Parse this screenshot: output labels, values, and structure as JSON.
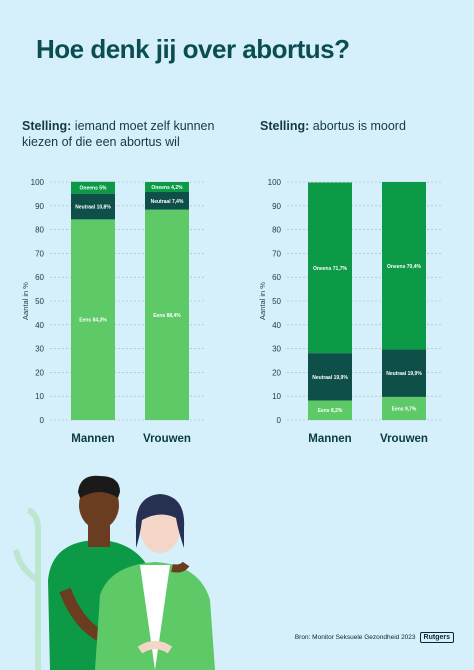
{
  "title": "Hoe denk jij over abortus?",
  "source": "Bron: Monitor Seksuele Gezondheid 2023",
  "logo_text": "Rutgers",
  "colors": {
    "eens": "#5dc967",
    "neutraal": "#0f4f4a",
    "oneens": "#0c9a47",
    "grid": "#9fb7bf"
  },
  "chart_data": [
    {
      "type": "bar",
      "stacked": true,
      "statement_label": "Stelling:",
      "statement_text": "iemand moet zelf kunnen kiezen of die een abortus wil",
      "ylabel": "Aantal in %",
      "ylim": [
        0,
        100
      ],
      "yticks": [
        0,
        10,
        20,
        30,
        40,
        50,
        60,
        70,
        80,
        90,
        100
      ],
      "categories": [
        "Mannen",
        "Vrouwen"
      ],
      "series": [
        {
          "key": "eens",
          "values": [
            84.3,
            88.4
          ],
          "labels": [
            "Eens 84,3%",
            "Eens 88,4%"
          ]
        },
        {
          "key": "neutraal",
          "values": [
            10.8,
            7.4
          ],
          "labels": [
            "Neutraal 10,8%",
            "Neutraal 7,4%"
          ]
        },
        {
          "key": "oneens",
          "values": [
            5.0,
            4.2
          ],
          "labels": [
            "Oneens 5%",
            "Oneens 4,2%"
          ]
        }
      ]
    },
    {
      "type": "bar",
      "stacked": true,
      "statement_label": "Stelling:",
      "statement_text": "abortus is moord",
      "ylabel": "Aantal in %",
      "ylim": [
        0,
        100
      ],
      "yticks": [
        0,
        10,
        20,
        30,
        40,
        50,
        60,
        70,
        80,
        90,
        100
      ],
      "categories": [
        "Mannen",
        "Vrouwen"
      ],
      "series": [
        {
          "key": "eens",
          "values": [
            8.2,
            9.7
          ],
          "labels": [
            "Eens 8,2%",
            "Eens 9,7%"
          ]
        },
        {
          "key": "neutraal",
          "values": [
            19.9,
            19.9
          ],
          "labels": [
            "Neutraal 19,9%",
            "Neutraal 19,9%"
          ]
        },
        {
          "key": "oneens",
          "values": [
            71.7,
            70.4
          ],
          "labels": [
            "Oneens 71,7%",
            "Oneens 70,4%"
          ]
        }
      ]
    }
  ]
}
